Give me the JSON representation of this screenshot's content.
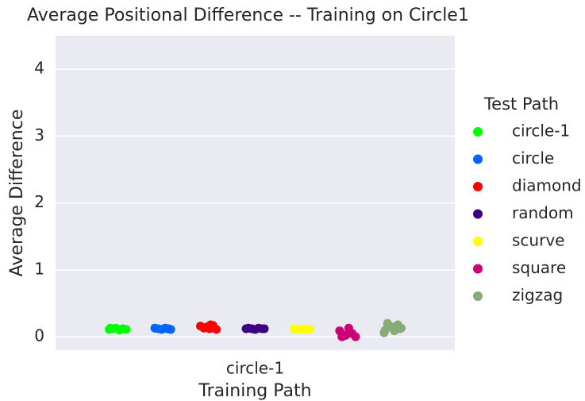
{
  "chart_data": {
    "type": "strip",
    "title": "Average Positional Difference -- Training on Circle1",
    "x_label": "Training Path",
    "y_label": "Average Difference",
    "legend_title": "Test Path",
    "legend_position": "right",
    "grid": true,
    "categories": [
      "circle-1"
    ],
    "ylim": [
      -0.2,
      4.5
    ],
    "yticks": [
      0,
      1,
      2,
      3,
      4
    ],
    "series": [
      {
        "name": "circle-1",
        "color": "#00ff00",
        "values": [
          0.11,
          0.12,
          0.13,
          0.1,
          0.12,
          0.11,
          0.13
        ]
      },
      {
        "name": "circle",
        "color": "#0066ff",
        "values": [
          0.12,
          0.11,
          0.13,
          0.12,
          0.11,
          0.13,
          0.12
        ]
      },
      {
        "name": "diamond",
        "color": "#ff0000",
        "values": [
          0.14,
          0.12,
          0.17,
          0.11,
          0.16,
          0.13,
          0.15,
          0.18
        ]
      },
      {
        "name": "random",
        "color": "#3d0080",
        "values": [
          0.12,
          0.13,
          0.12,
          0.11,
          0.13,
          0.12,
          0.12
        ]
      },
      {
        "name": "scurve",
        "color": "#ffff00",
        "values": [
          0.11,
          0.12,
          0.11,
          0.12,
          0.11,
          0.12,
          0.11
        ]
      },
      {
        "name": "square",
        "color": "#cc0077",
        "values": [
          0.0,
          0.02,
          0.13,
          0.05,
          0.0,
          0.09,
          0.01,
          0.03
        ]
      },
      {
        "name": "zigzag",
        "color": "#88aa77",
        "values": [
          0.12,
          0.06,
          0.2,
          0.15,
          0.09,
          0.18,
          0.13,
          0.1
        ]
      }
    ]
  }
}
